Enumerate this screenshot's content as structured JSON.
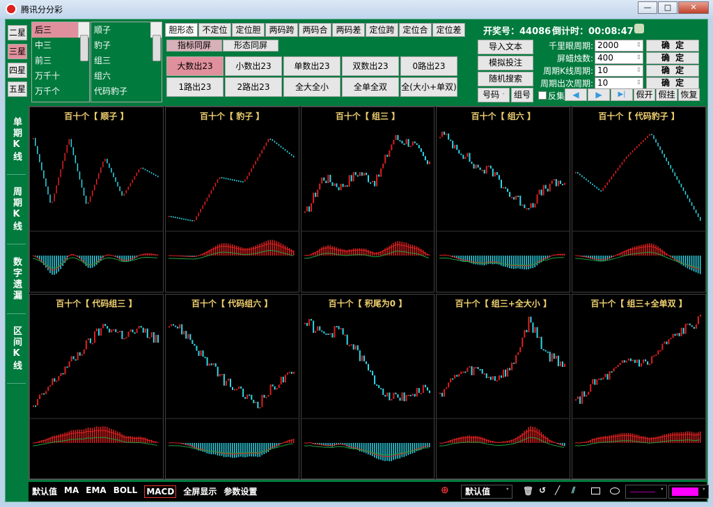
{
  "window": {
    "title": "腾讯分分彩",
    "minimize": "—",
    "maximize": "□",
    "close": "✕"
  },
  "star_buttons": [
    "二星",
    "三星",
    "四星",
    "五星"
  ],
  "star_selected": 1,
  "position_list": [
    "后三",
    "中三",
    "前三",
    "万千十",
    "万千个"
  ],
  "position_selected": 0,
  "pattern_list": [
    "顺子",
    "豹子",
    "组三",
    "组六",
    "代码豹子"
  ],
  "tabs": [
    "胆形态",
    "不定位",
    "定位胆",
    "两码跨",
    "两码合",
    "两码差",
    "定位跨",
    "定位合",
    "定位差"
  ],
  "tab_selected": 0,
  "subtabs": [
    "指标同屏",
    "形态同屏"
  ],
  "filters": [
    "大数出23",
    "小数出23",
    "单数出23",
    "双数出23",
    "0路出23",
    "1路出23",
    "2路出23",
    "全大全小",
    "全单全双",
    "全(大小+单双)"
  ],
  "filter_selected": 0,
  "status": {
    "draw_label": "开奖号：44086",
    "countdown_label": "倒计时：00:08:47"
  },
  "actions": {
    "import": "导入文本",
    "simulate": "模拟投注",
    "random": "随机搜索",
    "number": "号码",
    "group": "组号"
  },
  "params": [
    {
      "label": "千里眼周期:",
      "value": "2000",
      "confirm": "确  定"
    },
    {
      "label": "屏蜡烛数:",
      "value": "400",
      "confirm": "确  定"
    },
    {
      "label": "周期K线周期:",
      "value": "10",
      "confirm": "确  定"
    },
    {
      "label": "周期出次周期:",
      "value": "10",
      "confirm": "确  定"
    }
  ],
  "reverse_label": "反集",
  "nav": {
    "prev": "◀",
    "next": "▶",
    "end": "▶|",
    "fake_open": "假开",
    "fake_hang": "假挂",
    "restore": "恢复"
  },
  "side_tabs": [
    "单期K线",
    "周期K线",
    "数字遗漏",
    "区间K线"
  ],
  "panels": [
    {
      "title": "百十个【 顺子 】",
      "style": "line",
      "trend": [
        90,
        20,
        90,
        20,
        70,
        30,
        60,
        50
      ]
    },
    {
      "title": "百十个【 豹子 】",
      "style": "line",
      "trend": [
        10,
        5,
        50,
        45,
        90,
        70
      ]
    },
    {
      "title": "百十个【 组三 】",
      "style": "candle",
      "trend": [
        10,
        50,
        40,
        55,
        45,
        90,
        85,
        60
      ]
    },
    {
      "title": "百十个【 组六 】",
      "style": "candle",
      "trend": [
        95,
        80,
        60,
        55,
        30,
        20,
        40,
        45
      ]
    },
    {
      "title": "百十个【 代码豹子 】",
      "style": "line",
      "trend": [
        55,
        35,
        70,
        95,
        50,
        5
      ]
    },
    {
      "title": "百十个【 代码组三 】",
      "style": "candle",
      "trend": [
        5,
        30,
        50,
        70,
        90,
        80,
        85,
        75
      ]
    },
    {
      "title": "百十个【 代码组六 】",
      "style": "candle",
      "trend": [
        95,
        80,
        55,
        35,
        20,
        10,
        30,
        40
      ]
    },
    {
      "title": "百十个【 积尾为0 】",
      "style": "candle",
      "trend": [
        95,
        80,
        85,
        60,
        30,
        15,
        20,
        25
      ]
    },
    {
      "title": "百十个【 组三+全大小 】",
      "style": "candle",
      "trend": [
        20,
        40,
        45,
        35,
        45,
        95,
        60,
        50
      ]
    },
    {
      "title": "百十个【 组三+全单双 】",
      "style": "candle",
      "trend": [
        10,
        30,
        40,
        55,
        50,
        70,
        85,
        95
      ]
    }
  ],
  "bottom": {
    "items": [
      "默认值",
      "MA",
      "EMA",
      "BOLL",
      "MACD",
      "全屏显示",
      "参数设置"
    ],
    "selected": 4,
    "select_value": "默认值"
  },
  "colors": {
    "bg": "#007a3d",
    "up": "#e02020",
    "down": "#30d8e8",
    "selected": "#e0909c",
    "pen": "#ff00ff"
  }
}
